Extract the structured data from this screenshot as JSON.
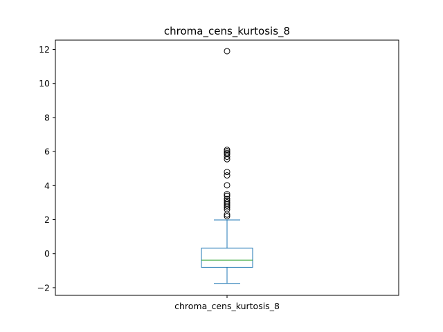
{
  "chart_data": {
    "type": "box",
    "title": "chroma_cens_kurtosis_8",
    "xlabel": "",
    "ylabel": "",
    "categories": [
      "chroma_cens_kurtosis_8"
    ],
    "ylim": [
      -2.45,
      12.55
    ],
    "yticks": [
      -2,
      0,
      2,
      4,
      6,
      8,
      10,
      12
    ],
    "ytick_labels": [
      "−2",
      "0",
      "2",
      "4",
      "6",
      "8",
      "10",
      "12"
    ],
    "grid": false,
    "series": [
      {
        "whisker_low": -1.75,
        "q1": -0.8,
        "median": -0.38,
        "q3": 0.32,
        "whisker_high": 1.98,
        "outliers": [
          2.2,
          2.3,
          2.6,
          2.72,
          2.82,
          2.92,
          3.02,
          3.12,
          3.22,
          3.4,
          3.5,
          4.02,
          4.6,
          4.8,
          5.55,
          5.7,
          5.85,
          5.92,
          6.02,
          6.1,
          11.9
        ]
      }
    ],
    "colors": {
      "box": "#1f77b4",
      "median": "#2ca02c",
      "outlier": "#000000",
      "axes": "#000000"
    }
  }
}
